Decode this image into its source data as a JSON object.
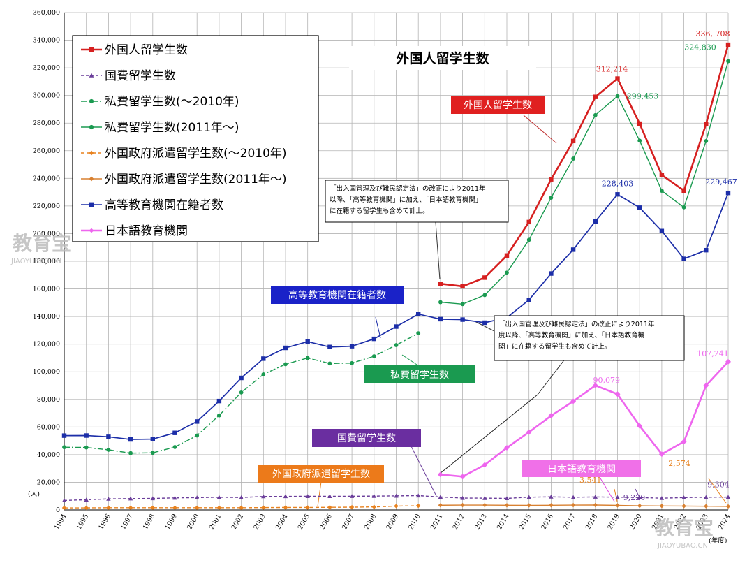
{
  "chart_data": {
    "type": "line",
    "title": "外国人留学生数",
    "unit_label": "(人)",
    "xunit_label": "(年度)",
    "ylim": [
      0,
      360000
    ],
    "yticks": [
      "0",
      "20,000",
      "40,000",
      "60,000",
      "80,000",
      "100,000",
      "120,000",
      "140,000",
      "160,000",
      "180,000",
      "200,000",
      "220,000",
      "240,000",
      "260,000",
      "280,000",
      "300,000",
      "320,000",
      "340,000",
      "360,000"
    ],
    "categories": [
      "1994",
      "1995",
      "1996",
      "1997",
      "1998",
      "1999",
      "2000",
      "2001",
      "2002",
      "2003",
      "2004",
      "2005",
      "2006",
      "2007",
      "2008",
      "2009",
      "2010",
      "2011",
      "2012",
      "2013",
      "2014",
      "2015",
      "2016",
      "2017",
      "2018",
      "2019",
      "2020",
      "2021",
      "2022",
      "2023",
      "2024"
    ],
    "series": [
      {
        "name": "外国人留学生数",
        "color": "#d62020",
        "marker": "square",
        "dash": "",
        "x": [
          "2011",
          "2012",
          "2013",
          "2014",
          "2015",
          "2016",
          "2017",
          "2018",
          "2019",
          "2020",
          "2021",
          "2022",
          "2023",
          "2024"
        ],
        "values": [
          163697,
          161848,
          168145,
          184155,
          208379,
          239287,
          267042,
          298980,
          312214,
          279597,
          242444,
          231146,
          279274,
          336708
        ]
      },
      {
        "name": "国費留学生数",
        "color": "#6a3d9a",
        "marker": "triangle",
        "dash": "4,3",
        "x": [
          "1994",
          "1995",
          "1996",
          "1997",
          "1998",
          "1999",
          "2000",
          "2001",
          "2002",
          "2003",
          "2004",
          "2005",
          "2006",
          "2007",
          "2008",
          "2009",
          "2010",
          "2011",
          "2012",
          "2013",
          "2014",
          "2015",
          "2016",
          "2017",
          "2018",
          "2019",
          "2020",
          "2021",
          "2022",
          "2023",
          "2024"
        ],
        "values": [
          6880,
          7371,
          7976,
          8212,
          8323,
          8700,
          8930,
          9173,
          9009,
          9746,
          9804,
          9891,
          9869,
          9923,
          10020,
          10168,
          10349,
          9396,
          8588,
          8529,
          8351,
          9223,
          9481,
          9166,
          9423,
          9220,
          8963,
          8491,
          8941,
          9172,
          9304
        ]
      },
      {
        "name": "私費留学生数(～2010年)",
        "color": "#1a9a50",
        "marker": "circle",
        "dash": "8,3,2,3",
        "x": [
          "1994",
          "1995",
          "1996",
          "1997",
          "1998",
          "1999",
          "2000",
          "2001",
          "2002",
          "2003",
          "2004",
          "2005",
          "2006",
          "2007",
          "2008",
          "2009",
          "2010"
        ],
        "values": [
          45408,
          45196,
          43514,
          41113,
          41347,
          45515,
          53847,
          68427,
          85024,
          98135,
          105450,
          110005,
          106000,
          106297,
          111244,
          119317,
          127873
        ]
      },
      {
        "name": "私費留学生数(2011年～)",
        "color": "#1a9a50",
        "marker": "circle",
        "dash": "",
        "x": [
          "2011",
          "2012",
          "2013",
          "2014",
          "2015",
          "2016",
          "2017",
          "2018",
          "2019",
          "2020",
          "2021",
          "2022",
          "2023",
          "2024"
        ],
        "values": [
          150400,
          149000,
          155500,
          171800,
          195500,
          226000,
          254300,
          285800,
          299453,
          267300,
          231000,
          219000,
          267000,
          324830
        ]
      },
      {
        "name": "外国政府派遣留学生数(～2010年)",
        "color": "#e8821e",
        "marker": "diamond",
        "dash": "5,3",
        "x": [
          "1994",
          "1995",
          "1996",
          "1997",
          "1998",
          "1999",
          "2000",
          "2001",
          "2002",
          "2003",
          "2004",
          "2005",
          "2006",
          "2007",
          "2008",
          "2009",
          "2010"
        ],
        "values": [
          1500,
          1500,
          1600,
          1600,
          1600,
          1600,
          1600,
          1600,
          1600,
          1700,
          1800,
          1800,
          1900,
          2000,
          2200,
          2800,
          3000
        ]
      },
      {
        "name": "外国政府派遣留学生数(2011年～)",
        "color": "#d88030",
        "marker": "diamond",
        "dash": "",
        "x": [
          "2011",
          "2012",
          "2013",
          "2014",
          "2015",
          "2016",
          "2017",
          "2018",
          "2019",
          "2020",
          "2021",
          "2022",
          "2023",
          "2024"
        ],
        "values": [
          3400,
          3500,
          3500,
          3400,
          3300,
          3400,
          3500,
          3541,
          3300,
          3000,
          2900,
          2800,
          2700,
          2574
        ]
      },
      {
        "name": "高等教育機関在籍者数",
        "color": "#1c2ea8",
        "marker": "square",
        "dash": "",
        "x": [
          "1994",
          "1995",
          "1996",
          "1997",
          "1998",
          "1999",
          "2000",
          "2001",
          "2002",
          "2003",
          "2004",
          "2005",
          "2006",
          "2007",
          "2008",
          "2009",
          "2010",
          "2011",
          "2012",
          "2013",
          "2014",
          "2015",
          "2016",
          "2017",
          "2018",
          "2019",
          "2020",
          "2021",
          "2022",
          "2023",
          "2024"
        ],
        "values": [
          53787,
          53847,
          52921,
          51047,
          51298,
          55755,
          64011,
          78812,
          95550,
          109508,
          117302,
          121812,
          117927,
          118498,
          123829,
          132720,
          141774,
          138075,
          137756,
          135519,
          139185,
          152062,
          171122,
          188384,
          208901,
          228403,
          218783,
          201877,
          181741,
          188000,
          229467
        ]
      },
      {
        "name": "日本語教育機関",
        "color": "#ee66ee",
        "marker": "diamond",
        "dash": "",
        "x": [
          "2011",
          "2012",
          "2013",
          "2014",
          "2015",
          "2016",
          "2017",
          "2018",
          "2019",
          "2020",
          "2021",
          "2022",
          "2023",
          "2024"
        ],
        "values": [
          25622,
          24092,
          32626,
          44970,
          56317,
          68165,
          78658,
          90079,
          83811,
          60814,
          40415,
          49405,
          90000,
          107241
        ]
      }
    ],
    "data_labels": [
      {
        "text": "336, 708",
        "x": "2024",
        "value": 336708,
        "color": "#d62020"
      },
      {
        "text": "324,830",
        "x": "2024",
        "value": 324830,
        "color": "#1a9a50"
      },
      {
        "text": "312,214",
        "x": "2019",
        "value": 312214,
        "color": "#d62020"
      },
      {
        "text": "299,453",
        "x": "2019",
        "value": 299453,
        "color": "#1a9a50"
      },
      {
        "text": "228,403",
        "x": "2019",
        "value": 228403,
        "color": "#1c2ea8"
      },
      {
        "text": "229,467",
        "x": "2024",
        "value": 229467,
        "color": "#1c2ea8"
      },
      {
        "text": "90,079",
        "x": "2018",
        "value": 90079,
        "color": "#ee66ee"
      },
      {
        "text": "107,241",
        "x": "2024",
        "value": 107241,
        "color": "#ee66ee"
      },
      {
        "text": "3,541",
        "x": "2018",
        "value": 3541,
        "color": "#e8821e"
      },
      {
        "text": "9,220",
        "x": "2019",
        "value": 9220,
        "color": "#6a3d9a"
      },
      {
        "text": "2,574",
        "x": "2024",
        "value": 2574,
        "color": "#e8821e"
      },
      {
        "text": "9,304",
        "x": "2024",
        "value": 9304,
        "color": "#6a3d9a"
      }
    ],
    "legend_position": "top-left",
    "grid": true,
    "callouts": [
      {
        "text": "外国人留学生数",
        "bg": "#e02020"
      },
      {
        "text": "高等教育機関在籍者数",
        "bg": "#1a22c8"
      },
      {
        "text": "私費留学生数",
        "bg": "#1a9a50"
      },
      {
        "text": "国費留学生数",
        "bg": "#6a2ea0"
      },
      {
        "text": "外国政府派遣留学生数",
        "bg": "#ec7a1a"
      },
      {
        "text": "日本語教育機関",
        "bg": "#f070e8"
      }
    ],
    "notes": [
      [
        "「出入国管理及び難民認定法」の改正により2011年",
        "以降、「高等教育機関」に加え、「日本語教育機関」",
        "に在籍する留学生も含めて計上。"
      ],
      [
        "「出入国管理及び難民認定法」の改正により2011年",
        "度以降、「高等教育機関」に加え、「日本語教育機",
        "関」に在籍する留学生も含めて計上。"
      ]
    ]
  },
  "watermark": {
    "brand": "教育宝",
    "url": "JIAOYUBAO.CN"
  }
}
